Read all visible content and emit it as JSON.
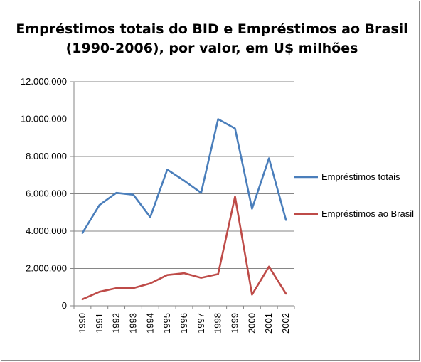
{
  "chart_data": {
    "type": "line",
    "title_line1": "Empréstimos totais do BID e Empréstimos ao Brasil",
    "title_line2": "(1990-2006), por valor, em U$ milhões",
    "x": [
      "1990",
      "1991",
      "1992",
      "1993",
      "1994",
      "1995",
      "1996",
      "1997",
      "1998",
      "1999",
      "2000",
      "2001",
      "2002"
    ],
    "x_tick_labels": [
      "1990",
      "1991",
      "1992",
      "1993",
      "1994",
      "1995",
      "1996",
      "1997",
      "1998",
      "1999",
      "2000",
      "2001",
      "2002"
    ],
    "series": [
      {
        "name": "Empréstimos totais",
        "color": "#4a7ebb",
        "values": [
          3900000,
          5400000,
          6050000,
          5950000,
          4750000,
          7300000,
          6700000,
          6050000,
          10000000,
          9500000,
          5200000,
          7900000,
          4600000
        ]
      },
      {
        "name": "Empréstimos ao Brasil",
        "color": "#be4b48",
        "values": [
          350000,
          750000,
          950000,
          950000,
          1200000,
          1650000,
          1750000,
          1500000,
          1700000,
          5850000,
          600000,
          2100000,
          650000
        ]
      }
    ],
    "ylim": [
      0,
      12000000
    ],
    "y_ticks": [
      0,
      2000000,
      4000000,
      6000000,
      8000000,
      10000000,
      12000000
    ],
    "y_tick_labels": [
      "0",
      "2.000.000",
      "4.000.000",
      "6.000.000",
      "8.000.000",
      "10.000.000",
      "12.000.000"
    ],
    "grid": true,
    "legend_position": "right"
  }
}
